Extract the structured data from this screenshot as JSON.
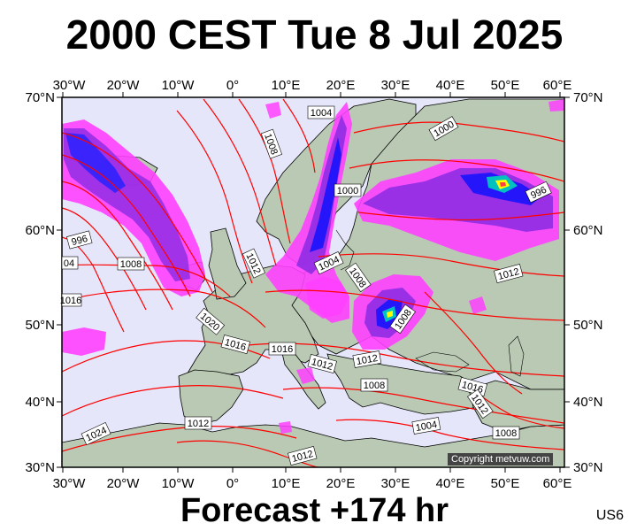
{
  "title": "2000 CEST Tue 8 Jul 2025",
  "footer": "Forecast +174 hr",
  "product_code": "US6",
  "copyright": "Copyright metvuw.com",
  "colors": {
    "ocean": "#e6e6fa",
    "land": "#b8c8b0",
    "isobar": "#ff0000",
    "precip_light": "#ff00ff",
    "precip_medium": "#8000ff",
    "precip_heavy": "#0000ff",
    "precip_extreme": "#00c0c0"
  },
  "axes": {
    "top": [
      "30°W",
      "20°W",
      "10°W",
      "0°",
      "10°E",
      "20°E",
      "30°E",
      "40°E",
      "50°E",
      "60°E"
    ],
    "bottom": [
      "30°W",
      "20°W",
      "10°W",
      "0°",
      "10°E",
      "20°E",
      "30°E",
      "40°E",
      "50°E",
      "60°E"
    ],
    "left": [
      "70°N",
      "60°N",
      "50°N",
      "40°N",
      "30°N"
    ],
    "right": [
      "70°N",
      "60°N",
      "50°N",
      "40°N",
      "30°N"
    ]
  },
  "isobar_labels": [
    "1004",
    "1008",
    "1000",
    "1000",
    "996",
    "996",
    "1008",
    "1012",
    "1004",
    "1008",
    "1012",
    "1008",
    "1020",
    "1016",
    "1016",
    "1012",
    "1012",
    "1008",
    "1016",
    "1012",
    "1012",
    "1004",
    "1008",
    "1024",
    "1012",
    "1016",
    "04"
  ]
}
